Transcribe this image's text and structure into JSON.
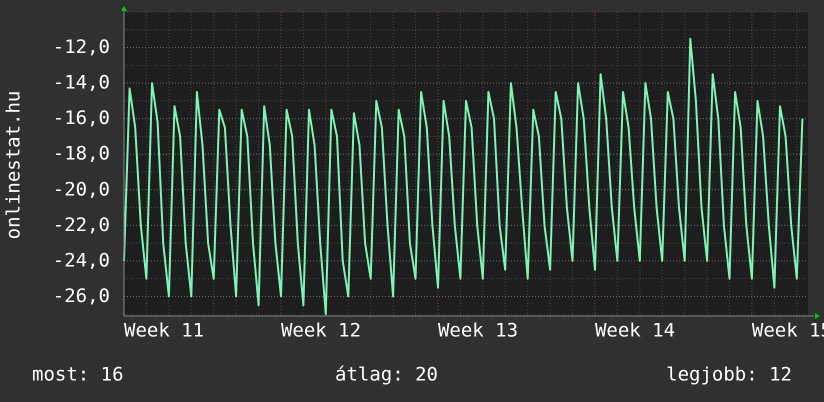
{
  "chart_data": {
    "type": "line",
    "ylabel": "onlinestat.hu",
    "xlim": [
      0,
      30.5
    ],
    "xticks": [
      {
        "value": 0,
        "label": "Week 11"
      },
      {
        "value": 7,
        "label": "Week 12"
      },
      {
        "value": 14,
        "label": "Week 13"
      },
      {
        "value": 21,
        "label": "Week 14"
      },
      {
        "value": 28,
        "label": "Week 15"
      }
    ],
    "ylim": [
      -27.1,
      -10
    ],
    "yticks": [
      {
        "value": -26,
        "label": "-26,0"
      },
      {
        "value": -24,
        "label": "-24,0"
      },
      {
        "value": -22,
        "label": "-22,0"
      },
      {
        "value": -20,
        "label": "-20,0"
      },
      {
        "value": -18,
        "label": "-18,0"
      },
      {
        "value": -16,
        "label": "-16,0"
      },
      {
        "value": -14,
        "label": "-14,0"
      },
      {
        "value": -12,
        "label": "-12,0"
      }
    ],
    "grid": true,
    "x": [
      0,
      0.25,
      0.5,
      0.75,
      1,
      1.25,
      1.5,
      1.75,
      2,
      2.25,
      2.5,
      2.75,
      3,
      3.25,
      3.5,
      3.75,
      4,
      4.25,
      4.5,
      4.75,
      5,
      5.25,
      5.5,
      5.75,
      6,
      6.25,
      6.5,
      6.75,
      7,
      7.25,
      7.5,
      7.75,
      8,
      8.25,
      8.5,
      8.75,
      9,
      9.25,
      9.5,
      9.75,
      10,
      10.25,
      10.5,
      10.75,
      11,
      11.25,
      11.5,
      11.75,
      12,
      12.25,
      12.5,
      12.75,
      13,
      13.25,
      13.5,
      13.75,
      14,
      14.25,
      14.5,
      14.75,
      15,
      15.25,
      15.5,
      15.75,
      16,
      16.25,
      16.5,
      16.75,
      17,
      17.25,
      17.5,
      17.75,
      18,
      18.25,
      18.5,
      18.75,
      19,
      19.25,
      19.5,
      19.75,
      20,
      20.25,
      20.5,
      20.75,
      21,
      21.25,
      21.5,
      21.75,
      22,
      22.25,
      22.5,
      22.75,
      23,
      23.25,
      23.5,
      23.75,
      24,
      24.25,
      24.5,
      24.75,
      25,
      25.25,
      25.5,
      25.75,
      26,
      26.25,
      26.5,
      26.75,
      27,
      27.25,
      27.5,
      27.75,
      28,
      28.25,
      28.5,
      28.75,
      29,
      29.25,
      29.5,
      29.75,
      30,
      30.25
    ],
    "series": [
      {
        "color": "#7ff5b4",
        "values": [
          -24,
          -14.3,
          -16.5,
          -22,
          -25,
          -14,
          -16.2,
          -23,
          -26,
          -15.3,
          -17,
          -23,
          -26,
          -14.5,
          -17.5,
          -23,
          -25,
          -15.5,
          -16.5,
          -22,
          -26,
          -15.5,
          -17,
          -23,
          -26.5,
          -15.3,
          -17.5,
          -23,
          -26,
          -15.5,
          -17,
          -23,
          -26.5,
          -15.5,
          -17.5,
          -23,
          -27,
          -15.5,
          -17,
          -24,
          -26,
          -15.7,
          -17.5,
          -23,
          -25,
          -15,
          -16.5,
          -22,
          -26,
          -15.5,
          -17,
          -23,
          -25,
          -14.5,
          -16.5,
          -22,
          -25.5,
          -15,
          -17,
          -22,
          -25,
          -15,
          -16.5,
          -22,
          -25,
          -14.5,
          -16,
          -22,
          -24.5,
          -14,
          -16.5,
          -21,
          -25,
          -15.5,
          -17,
          -22,
          -24.5,
          -14.5,
          -16,
          -21,
          -24,
          -14,
          -16,
          -21,
          -24.5,
          -13.5,
          -16,
          -21,
          -24,
          -14.5,
          -16.5,
          -21,
          -24,
          -14,
          -16,
          -21,
          -24,
          -14.5,
          -16,
          -21,
          -24,
          -11.5,
          -15,
          -21,
          -24,
          -13.5,
          -16,
          -22,
          -25,
          -14.5,
          -16.5,
          -22,
          -25,
          -15,
          -17,
          -22,
          -25.5,
          -15.3,
          -17,
          -22,
          -25,
          -16
        ]
      }
    ]
  },
  "footer": {
    "current": "most: 16",
    "average": "átlag: 20",
    "best": "legjobb: 12"
  }
}
